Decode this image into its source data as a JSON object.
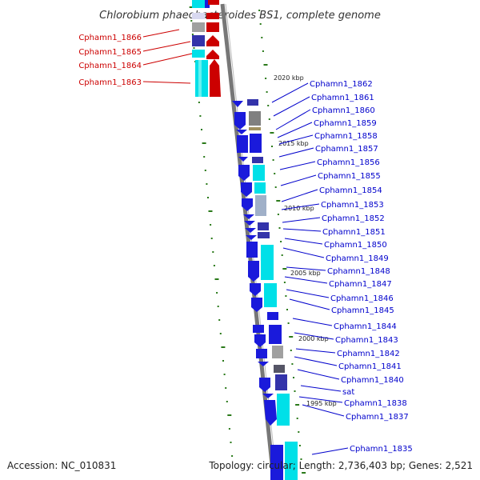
{
  "title": "Chlorobium phaeobacteroides BS1, complete genome",
  "footer": {
    "accession": "Accession: NC_010831",
    "summary": "Topology: circular; Length: 2,736,403 bp; Genes: 2,521"
  },
  "colors": {
    "forward_strand": "#cc0000",
    "reverse_strand": "#1a1adb",
    "rna_or_other": "#00e0e8",
    "pseudo": "#a0a0a0",
    "dark": "#44446a",
    "label_blue": "#0000cc",
    "label_red": "#cc0000",
    "tick_green": "#2a7a1a",
    "backbone": "#777777"
  },
  "kbp_markers": [
    "2020 kbp",
    "2015 kbp",
    "2010 kbp",
    "2005 kbp",
    "2000 kbp",
    "1995 kbp"
  ],
  "left_labels": [
    "Cphamn1_1866",
    "Cphamn1_1865",
    "Cphamn1_1864",
    "Cphamn1_1863"
  ],
  "right_labels": [
    "Cphamn1_1862",
    "Cphamn1_1861",
    "Cphamn1_1860",
    "Cphamn1_1859",
    "Cphamn1_1858",
    "Cphamn1_1857",
    "Cphamn1_1856",
    "Cphamn1_1855",
    "Cphamn1_1854",
    "Cphamn1_1853",
    "Cphamn1_1852",
    "Cphamn1_1851",
    "Cphamn1_1850",
    "Cphamn1_1849",
    "Cphamn1_1848",
    "Cphamn1_1847",
    "Cphamn1_1846",
    "Cphamn1_1845",
    "Cphamn1_1844",
    "Cphamn1_1843",
    "Cphamn1_1842",
    "Cphamn1_1841",
    "Cphamn1_1840",
    "sat",
    "Cphamn1_1838",
    "Cphamn1_1837",
    "Cphamn1_1835"
  ]
}
